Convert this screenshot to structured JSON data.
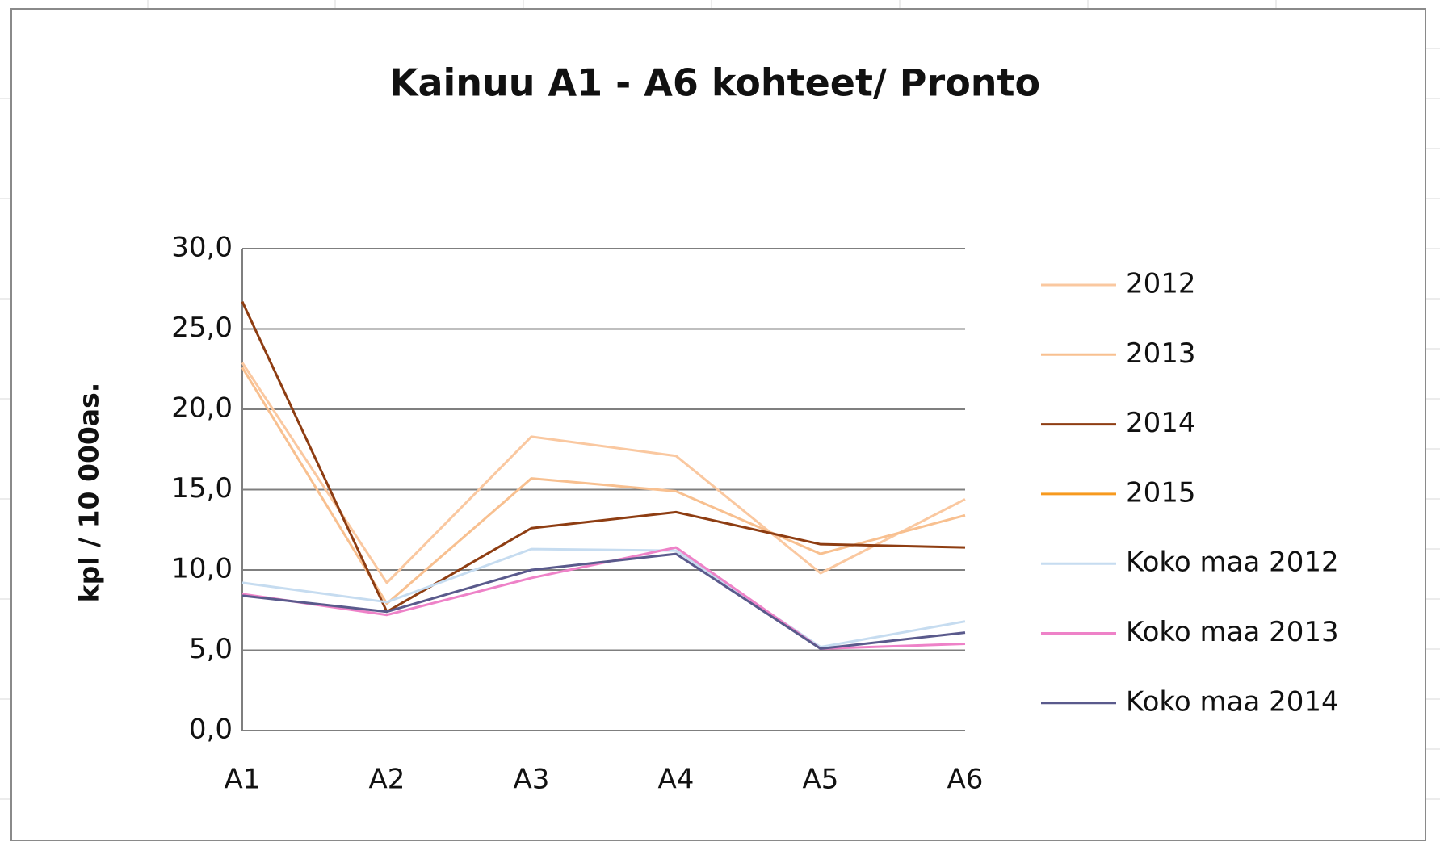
{
  "chart_data": {
    "type": "line",
    "title": "Kainuu A1 - A6 kohteet/ Pronto",
    "y_label": "kpl / 10 000as.",
    "categories": [
      "A1",
      "A2",
      "A3",
      "A4",
      "A5",
      "A6"
    ],
    "ylim": [
      0,
      30
    ],
    "yticks": [
      {
        "value": 0,
        "label": "0,0"
      },
      {
        "value": 5,
        "label": "5,0"
      },
      {
        "value": 10,
        "label": "10,0"
      },
      {
        "value": 15,
        "label": "15,0"
      },
      {
        "value": 20,
        "label": "20,0"
      },
      {
        "value": 25,
        "label": "25,0"
      },
      {
        "value": 30,
        "label": "30,0"
      }
    ],
    "grid": true,
    "legend": "right",
    "series": [
      {
        "name": "2012",
        "color": "#fac8a0",
        "values": [
          22.9,
          9.2,
          18.3,
          17.1,
          9.8,
          14.4
        ]
      },
      {
        "name": "2013",
        "color": "#f8c090",
        "values": [
          22.6,
          7.9,
          15.7,
          14.9,
          11.0,
          13.4
        ]
      },
      {
        "name": "2014",
        "color": "#8e3d12",
        "values": [
          26.7,
          7.4,
          12.6,
          13.6,
          11.6,
          11.4
        ]
      },
      {
        "name": "2015",
        "color": "#f79a1f",
        "values": [
          null,
          null,
          null,
          null,
          null,
          null
        ]
      },
      {
        "name": "Koko maa 2012",
        "color": "#c6dcf0",
        "values": [
          9.2,
          8.0,
          11.3,
          11.2,
          5.2,
          6.8
        ]
      },
      {
        "name": "Koko maa 2013",
        "color": "#ee82c8",
        "values": [
          8.5,
          7.2,
          9.5,
          11.4,
          5.1,
          5.4
        ]
      },
      {
        "name": "Koko maa 2014",
        "color": "#5a5a8c",
        "values": [
          8.4,
          7.4,
          10.0,
          11.0,
          5.1,
          6.1
        ]
      }
    ]
  }
}
